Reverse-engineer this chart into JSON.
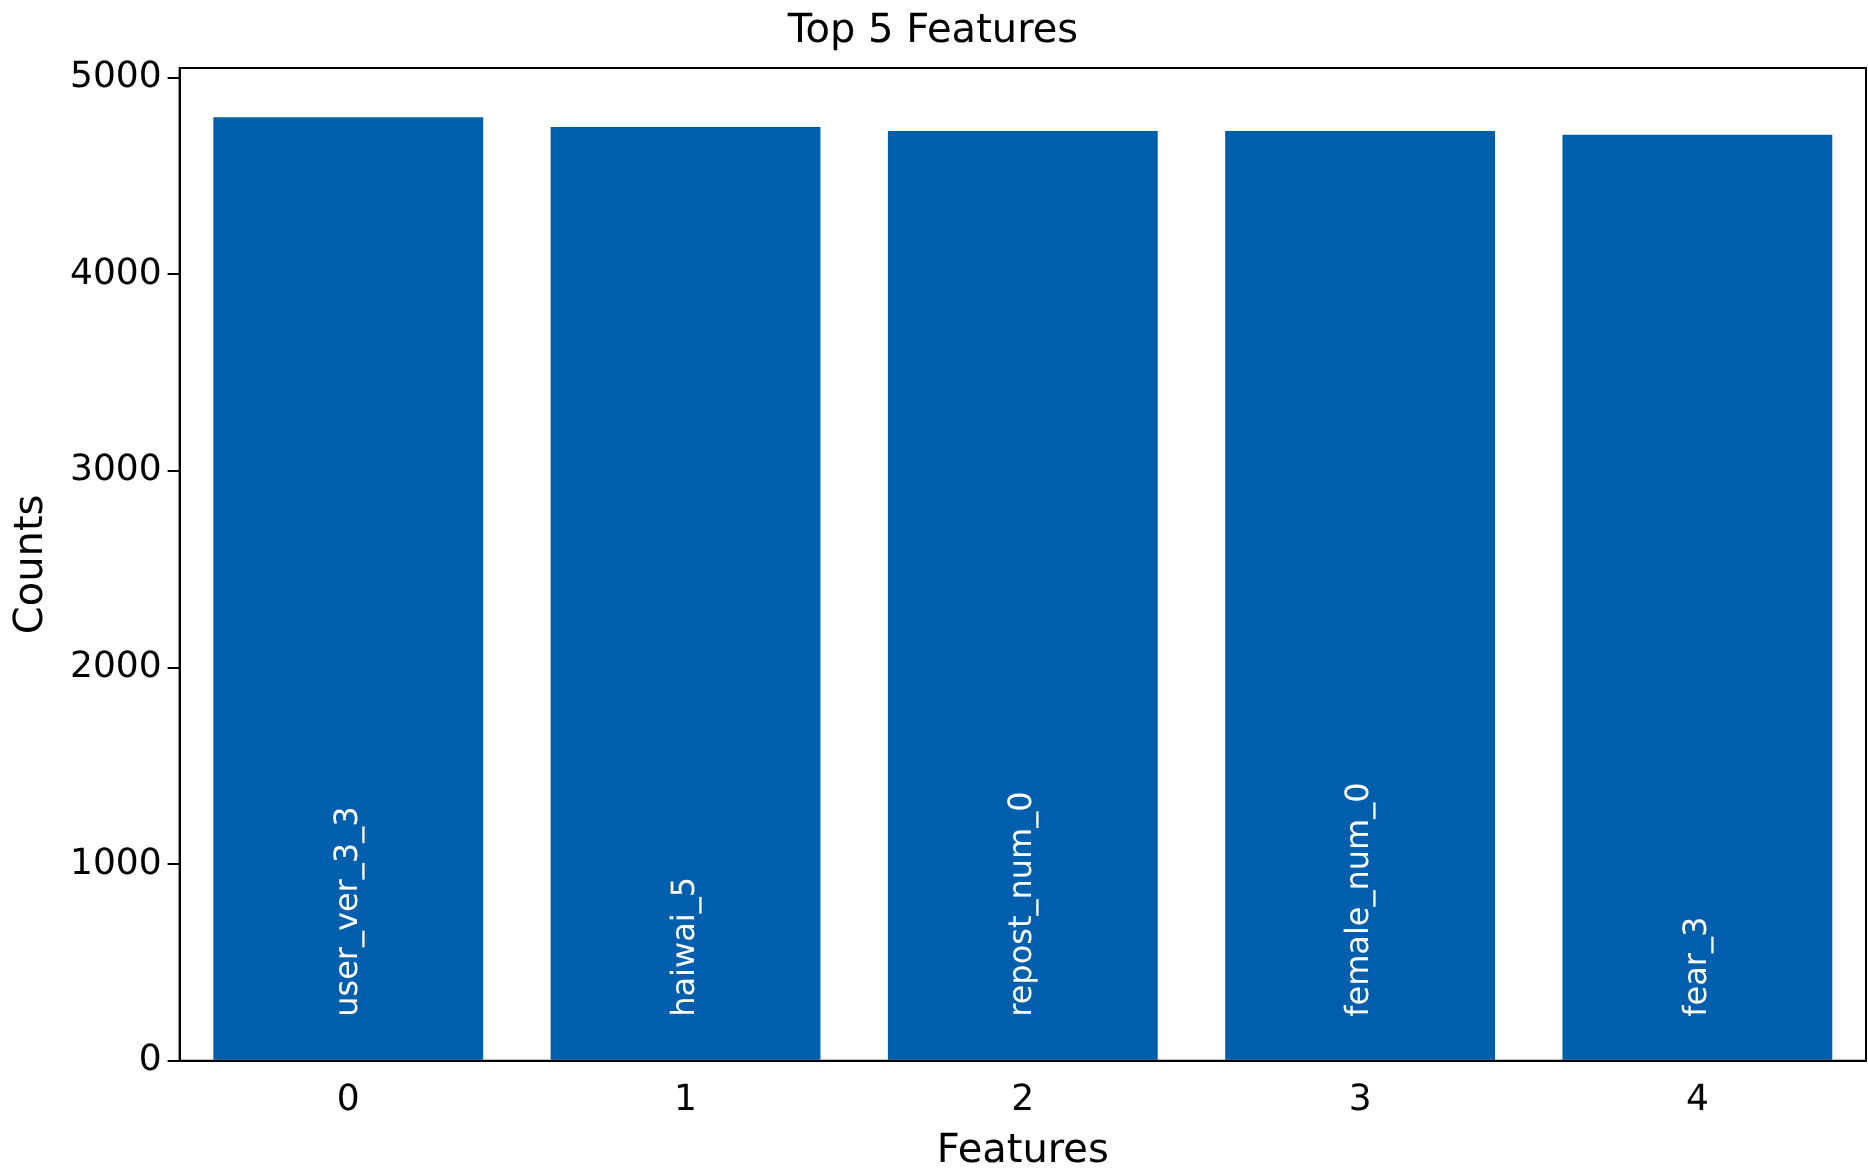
{
  "chart_data": {
    "type": "bar",
    "title": "Top 5 Features",
    "xlabel": "Features",
    "ylabel": "Counts",
    "categories": [
      "0",
      "1",
      "2",
      "3",
      "4"
    ],
    "values": [
      4800,
      4750,
      4730,
      4730,
      4710
    ],
    "color": "#005fad",
    "ylim": [
      0,
      5050
    ],
    "yticks": [
      0,
      1000,
      2000,
      3000,
      4000,
      5000
    ],
    "grid": false,
    "legend": false,
    "annotations": [
      "user_ver_3_3",
      "haiwai_5",
      "repost_num_0",
      "female_num_0",
      "fear_3"
    ]
  }
}
